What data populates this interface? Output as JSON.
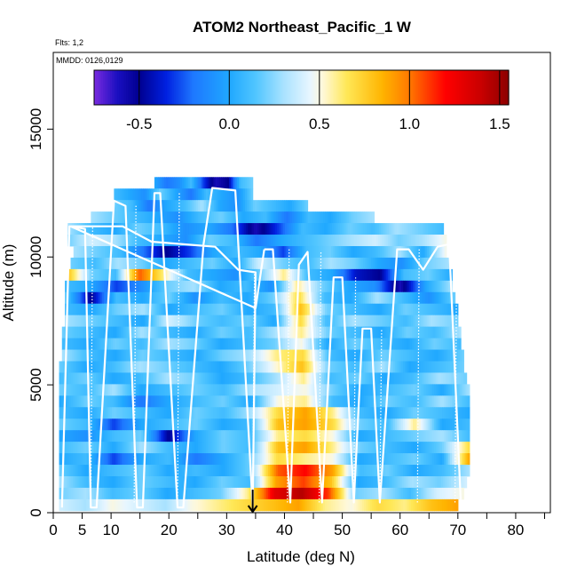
{
  "chart_data": {
    "type": "heatmap",
    "title": "ATOM2 Northeast_Pacific_1 W",
    "flights_label": "Flts: 1,2",
    "dates_label": "MMDD: 0126,0129",
    "xlabel": "Latitude (deg N)",
    "ylabel": "Altitude (m)",
    "xlim": [
      0,
      86
    ],
    "ylim": [
      0,
      18000
    ],
    "x_ticks": [
      0,
      10,
      20,
      30,
      40,
      50,
      60,
      70,
      80
    ],
    "x_ticks_extra": [
      5
    ],
    "x_minor_ticks": [
      15,
      25,
      35,
      45,
      55,
      65,
      75,
      85
    ],
    "y_ticks": [
      0,
      5000,
      10000,
      15000
    ],
    "colorbar": {
      "min": -0.75,
      "max": 1.55,
      "ticks": [
        -0.5,
        0.0,
        0.5,
        1.0,
        1.5
      ],
      "tick_labels": [
        "-0.5",
        "0.0",
        "0.5",
        "1.0",
        "1.5"
      ],
      "stops": [
        {
          "v": -0.75,
          "c": "#7a2be0"
        },
        {
          "v": -0.62,
          "c": "#1a0fc0"
        },
        {
          "v": -0.5,
          "c": "#000090"
        },
        {
          "v": -0.35,
          "c": "#0020e0"
        },
        {
          "v": -0.2,
          "c": "#1e78ff"
        },
        {
          "v": 0.0,
          "c": "#20a8ff"
        },
        {
          "v": 0.15,
          "c": "#52c6ff"
        },
        {
          "v": 0.3,
          "c": "#a8e2ff"
        },
        {
          "v": 0.45,
          "c": "#e8f6ff"
        },
        {
          "v": 0.52,
          "c": "#fff8d8"
        },
        {
          "v": 0.65,
          "c": "#ffe858"
        },
        {
          "v": 0.85,
          "c": "#ffb400"
        },
        {
          "v": 1.0,
          "c": "#ff7800"
        },
        {
          "v": 1.2,
          "c": "#ff0000"
        },
        {
          "v": 1.4,
          "c": "#c80000"
        },
        {
          "v": 1.55,
          "c": "#8c0000"
        }
      ]
    },
    "heatmap_rows": [
      {
        "alt": 12900,
        "lat_start": 17.5,
        "lat_end": 34.5,
        "vals": [
          0.0,
          -0.2,
          -0.1,
          0.1,
          -0.3,
          -0.6,
          -0.5,
          0.1,
          0.2
        ]
      },
      {
        "alt": 12450,
        "lat_start": 10.5,
        "lat_end": 34.5,
        "vals": [
          0.1,
          0.0,
          -0.1,
          0.2,
          0.0,
          -0.2,
          0.1,
          0.0,
          -0.1,
          0.2
        ]
      },
      {
        "alt": 12000,
        "lat_start": 10.5,
        "lat_end": 44.0,
        "vals": [
          0.2,
          0.1,
          -0.2,
          0.0,
          0.1,
          0.3,
          0.0,
          -0.1,
          0.2,
          0.1,
          0.0,
          0.2
        ]
      },
      {
        "alt": 11550,
        "lat_start": 6.5,
        "lat_end": 55.5,
        "vals": [
          0.3,
          0.2,
          0.1,
          0.0,
          -0.1,
          0.1,
          0.2,
          0.0,
          0.1,
          -0.2,
          0.1,
          0.0,
          0.2,
          0.3
        ]
      },
      {
        "alt": 11100,
        "lat_start": 2.5,
        "lat_end": 67.5,
        "vals": [
          0.3,
          0.1,
          0.0,
          0.2,
          0.1,
          -0.1,
          0.0,
          -0.2,
          -0.6,
          -0.3,
          0.1,
          0.0,
          0.2,
          0.1,
          0.3,
          0.2,
          0.1
        ]
      },
      {
        "alt": 10650,
        "lat_start": 2.5,
        "lat_end": 68.0,
        "vals": [
          0.2,
          0.4,
          0.3,
          0.1,
          0.0,
          -0.1,
          0.2,
          0.1,
          -0.2,
          0.0,
          0.1,
          0.2,
          0.3,
          0.4,
          0.2,
          0.3,
          0.5
        ]
      },
      {
        "alt": 10200,
        "lat_start": 3.5,
        "lat_end": 68.0,
        "vals": [
          0.3,
          0.2,
          0.1,
          -0.2,
          -0.5,
          -0.3,
          0.0,
          0.1,
          0.0,
          -0.3,
          0.1,
          0.2,
          0.0,
          0.1,
          0.3,
          0.0,
          0.5
        ]
      },
      {
        "alt": 9750,
        "lat_start": 3.0,
        "lat_end": 68.5,
        "vals": [
          0.2,
          0.1,
          0.3,
          0.2,
          0.0,
          0.1,
          0.2,
          0.0,
          0.4,
          0.2,
          0.1,
          0.3,
          0.2,
          0.0,
          -0.1,
          0.2,
          0.3
        ]
      },
      {
        "alt": 9300,
        "lat_start": 2.5,
        "lat_end": 69.0,
        "vals": [
          0.8,
          0.2,
          0.1,
          1.05,
          0.6,
          0.1,
          0.0,
          -0.1,
          0.2,
          0.6,
          0.1,
          0.0,
          -0.4,
          -0.5,
          0.1,
          0.2,
          0.0
        ]
      },
      {
        "alt": 8850,
        "lat_start": 2.0,
        "lat_end": 69.0,
        "vals": [
          0.1,
          0.0,
          -0.3,
          -0.1,
          0.2,
          0.3,
          0.0,
          0.1,
          -0.1,
          0.6,
          0.2,
          0.0,
          -0.1,
          -0.6,
          0.0,
          0.3
        ]
      },
      {
        "alt": 8400,
        "lat_start": 2.0,
        "lat_end": 69.5,
        "vals": [
          0.2,
          -0.5,
          0.1,
          0.0,
          0.2,
          -0.1,
          0.1,
          0.0,
          0.2,
          0.7,
          0.1,
          0.0,
          0.3,
          0.1,
          -0.1,
          0.2
        ]
      },
      {
        "alt": 7950,
        "lat_start": 2.0,
        "lat_end": 70.0,
        "vals": [
          0.1,
          0.0,
          0.2,
          0.3,
          0.0,
          0.1,
          0.2,
          0.0,
          0.1,
          0.8,
          0.2,
          0.1,
          0.0,
          0.2,
          0.1,
          0.0
        ]
      },
      {
        "alt": 7500,
        "lat_start": 2.0,
        "lat_end": 70.0,
        "vals": [
          0.3,
          0.2,
          0.1,
          0.0,
          0.4,
          0.2,
          0.1,
          0.2,
          0.0,
          0.7,
          0.1,
          0.3,
          0.2,
          0.1,
          0.3,
          0.2
        ]
      },
      {
        "alt": 7050,
        "lat_start": 1.5,
        "lat_end": 70.5,
        "vals": [
          0.2,
          0.1,
          0.0,
          0.3,
          0.1,
          0.0,
          0.2,
          0.1,
          0.3,
          0.6,
          0.2,
          0.1,
          0.0,
          0.2,
          0.1,
          0.3
        ]
      },
      {
        "alt": 6600,
        "lat_start": 1.5,
        "lat_end": 70.5,
        "vals": [
          0.1,
          0.0,
          0.2,
          0.1,
          0.3,
          0.2,
          0.0,
          0.1,
          0.2,
          0.5,
          0.0,
          0.2,
          0.1,
          0.0,
          0.2,
          0.1
        ]
      },
      {
        "alt": 6150,
        "lat_start": 1.5,
        "lat_end": 71.0,
        "vals": [
          0.3,
          0.1,
          0.0,
          0.2,
          0.1,
          0.0,
          0.2,
          0.3,
          0.6,
          0.7,
          0.1,
          0.0,
          0.2,
          0.1,
          0.0,
          0.2
        ]
      },
      {
        "alt": 5700,
        "lat_start": 1.0,
        "lat_end": 71.0,
        "vals": [
          0.2,
          0.0,
          0.1,
          0.3,
          0.2,
          0.1,
          0.0,
          0.2,
          0.5,
          0.8,
          0.2,
          0.1,
          0.3,
          0.0,
          0.1,
          0.2
        ]
      },
      {
        "alt": 5250,
        "lat_start": 1.0,
        "lat_end": 71.5,
        "vals": [
          0.1,
          0.2,
          0.0,
          0.1,
          0.3,
          0.2,
          0.0,
          0.1,
          0.3,
          0.6,
          0.1,
          0.2,
          0.0,
          0.1,
          0.3,
          0.2
        ]
      },
      {
        "alt": 4800,
        "lat_start": 1.0,
        "lat_end": 72.0,
        "vals": [
          0.2,
          0.1,
          0.3,
          0.0,
          0.1,
          0.2,
          0.1,
          0.3,
          0.4,
          0.5,
          0.2,
          0.0,
          0.1,
          0.2,
          0.0,
          0.3
        ]
      },
      {
        "alt": 4350,
        "lat_start": 1.0,
        "lat_end": 72.0,
        "vals": [
          0.0,
          0.2,
          0.1,
          -0.2,
          0.0,
          0.1,
          0.2,
          0.0,
          0.5,
          0.6,
          0.1,
          0.0,
          0.2,
          0.1,
          0.3,
          0.1
        ]
      },
      {
        "alt": 3900,
        "lat_start": 1.0,
        "lat_end": 72.0,
        "vals": [
          0.1,
          0.0,
          0.2,
          0.1,
          0.0,
          0.2,
          0.1,
          0.3,
          0.7,
          0.9,
          0.6,
          0.1,
          0.0,
          0.2,
          0.1,
          0.0
        ]
      },
      {
        "alt": 3450,
        "lat_start": 1.0,
        "lat_end": 72.0,
        "vals": [
          0.2,
          0.1,
          -0.3,
          0.0,
          0.1,
          0.2,
          0.0,
          0.1,
          0.8,
          0.9,
          0.7,
          0.2,
          0.1,
          0.6,
          0.0,
          0.1
        ]
      },
      {
        "alt": 3000,
        "lat_start": 1.0,
        "lat_end": 72.0,
        "vals": [
          0.0,
          -0.1,
          0.1,
          0.2,
          -0.5,
          0.0,
          0.2,
          0.1,
          0.6,
          0.7,
          0.5,
          0.0,
          0.1,
          0.2,
          0.3,
          0.1
        ]
      },
      {
        "alt": 2550,
        "lat_start": 1.0,
        "lat_end": 72.0,
        "vals": [
          0.1,
          0.2,
          0.0,
          0.3,
          0.1,
          0.0,
          0.2,
          0.1,
          0.8,
          0.9,
          0.6,
          0.2,
          0.1,
          0.0,
          0.2,
          0.7
        ]
      },
      {
        "alt": 2100,
        "lat_start": 1.0,
        "lat_end": 72.0,
        "vals": [
          0.0,
          0.1,
          -0.3,
          0.0,
          0.1,
          -0.2,
          0.0,
          0.2,
          0.7,
          0.6,
          0.5,
          0.0,
          0.1,
          0.2,
          0.0,
          0.9
        ]
      },
      {
        "alt": 1650,
        "lat_start": 1.0,
        "lat_end": 72.0,
        "vals": [
          0.2,
          0.0,
          0.1,
          0.2,
          0.0,
          0.1,
          0.0,
          0.2,
          1.05,
          1.2,
          0.9,
          0.1,
          0.2,
          0.0,
          0.1,
          0.3
        ]
      },
      {
        "alt": 1200,
        "lat_start": 1.0,
        "lat_end": 71.5,
        "vals": [
          0.3,
          0.1,
          0.0,
          0.2,
          0.1,
          0.0,
          0.2,
          0.1,
          0.9,
          1.1,
          0.8,
          0.0,
          0.1,
          0.3,
          0.2,
          0.4
        ]
      },
      {
        "alt": 750,
        "lat_start": 1.0,
        "lat_end": 71.0,
        "vals": [
          0.2,
          0.3,
          0.1,
          0.2,
          0.0,
          0.1,
          0.2,
          0.6,
          1.3,
          1.45,
          1.1,
          0.2,
          0.3,
          0.1,
          0.4,
          0.5
        ]
      },
      {
        "alt": 300,
        "lat_start": 1.0,
        "lat_end": 70.0,
        "vals": [
          0.4,
          0.3,
          0.5,
          0.4,
          0.3,
          0.5,
          0.6,
          0.7,
          0.8,
          0.9,
          0.6,
          0.5,
          0.7,
          0.6,
          0.8,
          0.9
        ]
      }
    ],
    "flight_track": [
      [
        1.5,
        200
      ],
      [
        2.8,
        11200
      ],
      [
        5.5,
        11100
      ],
      [
        6.5,
        200
      ],
      [
        7.5,
        200
      ],
      [
        10.5,
        12200
      ],
      [
        12.5,
        12000
      ],
      [
        14.5,
        200
      ],
      [
        15.5,
        200
      ],
      [
        17.5,
        12500
      ],
      [
        18.5,
        12500
      ],
      [
        21.5,
        200
      ],
      [
        22.5,
        200
      ],
      [
        26.0,
        10500
      ],
      [
        27.5,
        12700
      ],
      [
        31.5,
        12600
      ],
      [
        34.5,
        200
      ],
      [
        35.0,
        9400
      ],
      [
        32.0,
        9500
      ],
      [
        28.0,
        10400
      ],
      [
        17.0,
        10600
      ],
      [
        12.0,
        11200
      ],
      [
        3.0,
        11200
      ],
      [
        35.0,
        8000
      ],
      [
        36.5,
        10300
      ],
      [
        38.0,
        10300
      ],
      [
        41.0,
        400
      ],
      [
        42.5,
        9700
      ],
      [
        44.0,
        10200
      ],
      [
        46.5,
        400
      ],
      [
        48.5,
        9200
      ],
      [
        50.0,
        9200
      ],
      [
        52.0,
        400
      ],
      [
        53.5,
        7200
      ],
      [
        55.0,
        7200
      ],
      [
        56.5,
        400
      ],
      [
        59.5,
        10300
      ],
      [
        61.5,
        10300
      ],
      [
        64.0,
        9500
      ],
      [
        66.5,
        10400
      ],
      [
        68.5,
        10500
      ],
      [
        70.5,
        400
      ]
    ],
    "track_solid_segments": [
      [
        0,
        24
      ],
      [
        24,
        42
      ]
    ],
    "dotted_verticals": [
      {
        "lat": 6.5,
        "from": 400,
        "to": 11200
      },
      {
        "lat": 14.0,
        "from": 400,
        "to": 12000
      },
      {
        "lat": 21.5,
        "from": 400,
        "to": 12500
      },
      {
        "lat": 34.5,
        "from": 400,
        "to": 9400
      },
      {
        "lat": 40.5,
        "from": 400,
        "to": 10300
      },
      {
        "lat": 46.0,
        "from": 400,
        "to": 10200
      },
      {
        "lat": 52.0,
        "from": 400,
        "to": 9200
      },
      {
        "lat": 56.5,
        "from": 400,
        "to": 7200
      },
      {
        "lat": 63.0,
        "from": 400,
        "to": 10300
      },
      {
        "lat": 69.5,
        "from": 400,
        "to": 10500
      }
    ],
    "arrow_marker": {
      "lat": 34.5,
      "alt_top": 900,
      "alt_bottom": 0
    }
  }
}
